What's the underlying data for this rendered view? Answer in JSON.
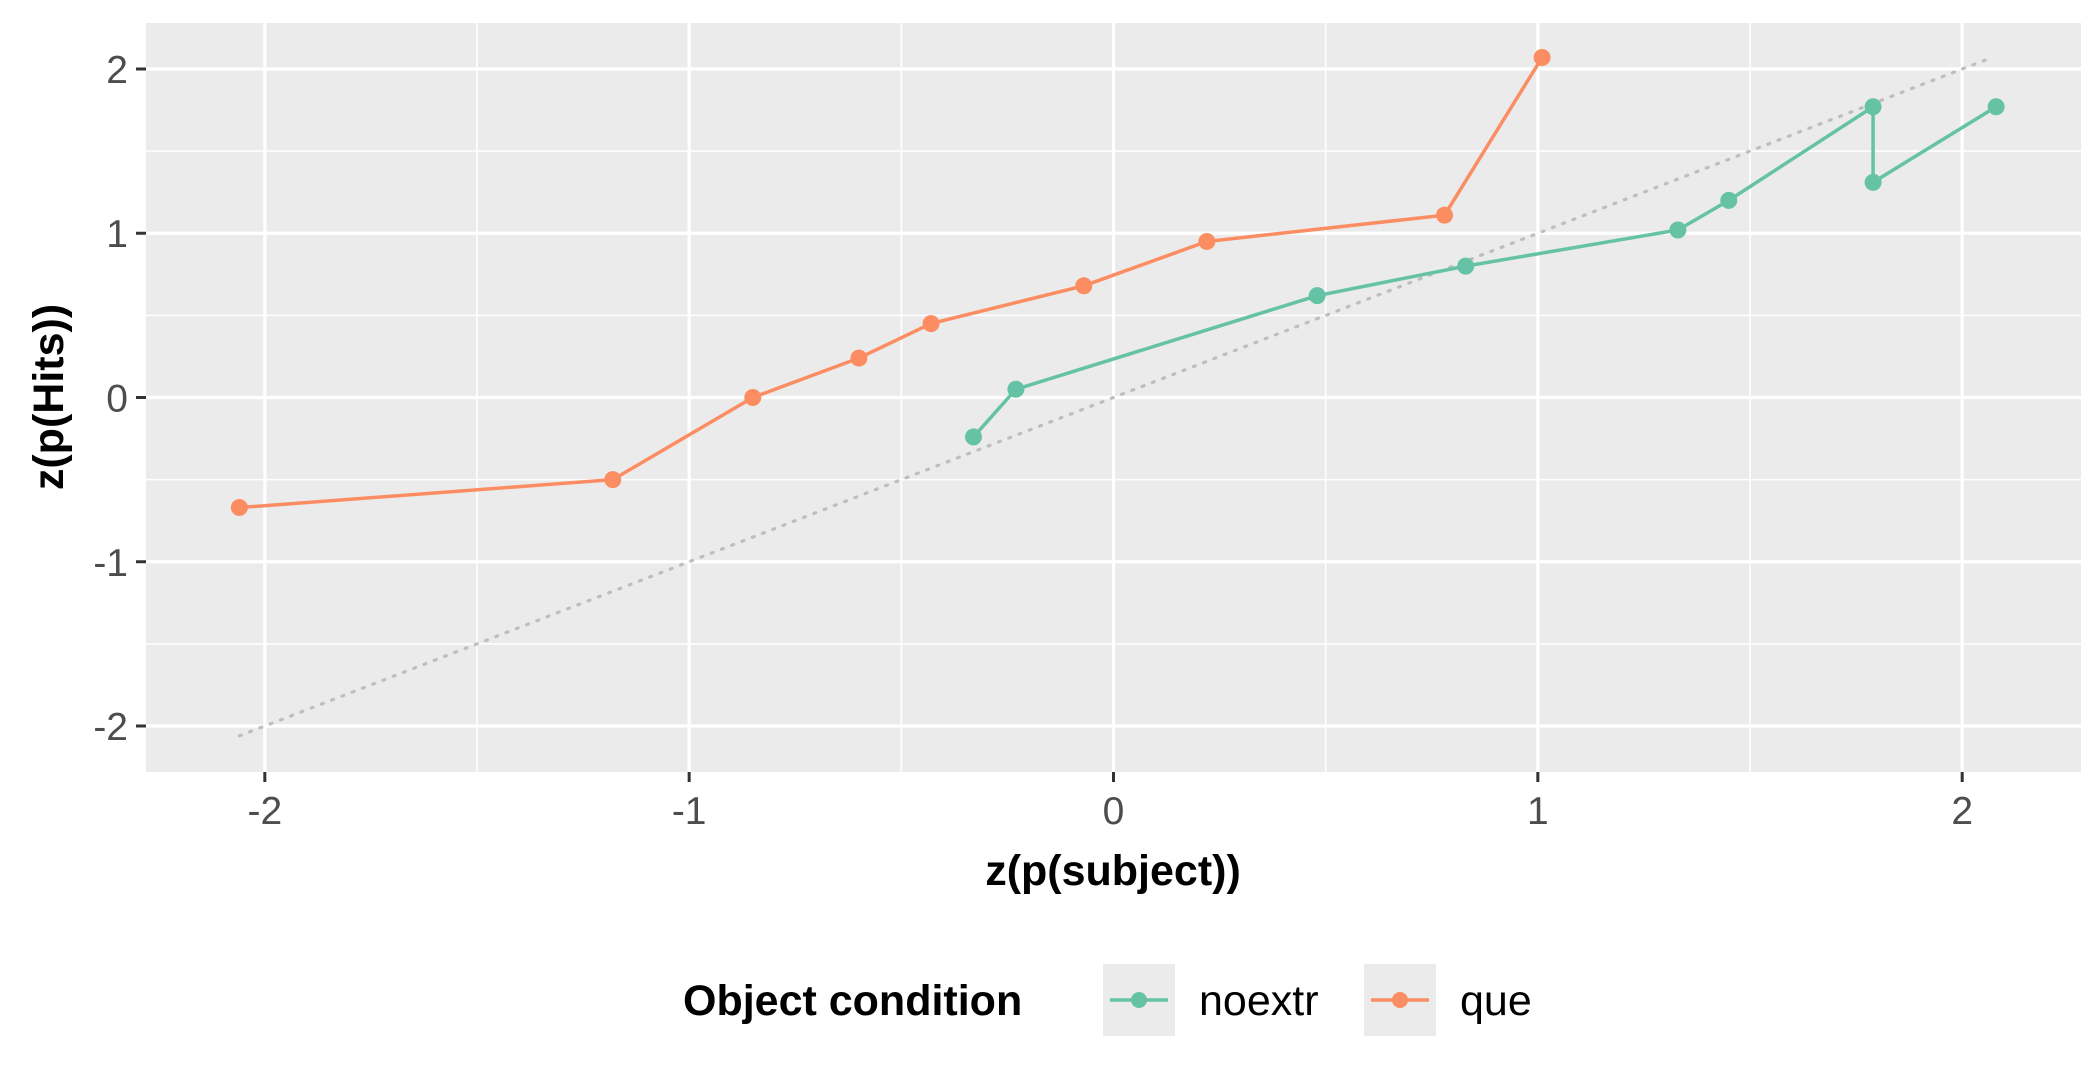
{
  "chart_data": {
    "type": "line",
    "xlabel": "z(p(subject))",
    "ylabel": "z(p(Hits))",
    "xlim": [
      -2.28,
      2.28
    ],
    "ylim": [
      -2.28,
      2.28
    ],
    "x_ticks": [
      -2,
      -1,
      0,
      1,
      2
    ],
    "y_ticks": [
      -2,
      -1,
      0,
      1,
      2
    ],
    "x_tick_labels": [
      "-2",
      "-1",
      "0",
      "1",
      "2"
    ],
    "y_tick_labels": [
      "-2",
      "-1",
      "0",
      "1",
      "2"
    ],
    "grid": true,
    "panel_background": "#ebebeb",
    "grid_color": "#ffffff",
    "reference_line": {
      "style": "dotted",
      "color": "#bebebe",
      "from": [
        -2.06,
        -2.06
      ],
      "to": [
        2.06,
        2.06
      ]
    },
    "legend": {
      "title": "Object condition",
      "position": "bottom"
    },
    "series": [
      {
        "name": "noextr",
        "color": "#66c2a5",
        "points": [
          [
            -0.33,
            -0.24
          ],
          [
            -0.23,
            0.05
          ],
          [
            0.48,
            0.62
          ],
          [
            0.83,
            0.8
          ],
          [
            1.33,
            1.02
          ],
          [
            1.45,
            1.2
          ],
          [
            1.79,
            1.77
          ],
          [
            1.79,
            1.31
          ],
          [
            2.08,
            1.77
          ]
        ]
      },
      {
        "name": "que",
        "color": "#fc8d62",
        "points": [
          [
            -2.06,
            -0.67
          ],
          [
            -1.18,
            -0.5
          ],
          [
            -0.85,
            0.0
          ],
          [
            -0.6,
            0.24
          ],
          [
            -0.43,
            0.45
          ],
          [
            -0.07,
            0.68
          ],
          [
            0.22,
            0.95
          ],
          [
            0.78,
            1.11
          ],
          [
            1.01,
            2.07
          ]
        ]
      }
    ]
  }
}
